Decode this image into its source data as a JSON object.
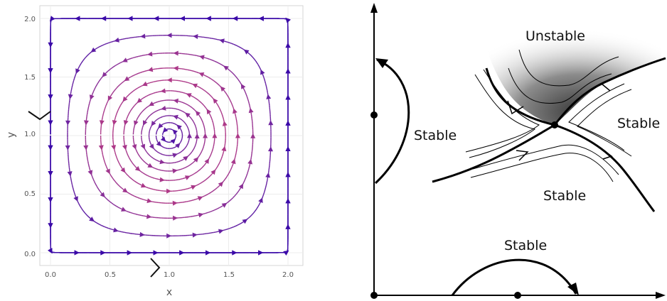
{
  "left_panel": {
    "xlabel": "x",
    "ylabel": "y",
    "xticks": [
      "0.0",
      "0.5",
      "1.0",
      "1.5",
      "2.0"
    ],
    "yticks": [
      "0.0",
      "0.5",
      "1.0",
      "1.5",
      "2.0"
    ],
    "xrange": [
      -0.1,
      2.1
    ],
    "yrange": [
      -0.05,
      2.1
    ],
    "center": [
      1.0,
      1.0
    ],
    "orbit_levels": [
      0.008,
      0.03,
      0.07,
      0.13,
      0.21,
      0.32,
      0.46,
      0.62,
      0.8,
      0.95,
      1.05,
      1.13,
      1.2
    ],
    "colormap": [
      "#3b0aa8",
      "#7a2a9e",
      "#b23a86",
      "#df5f5a",
      "#f29a35"
    ]
  },
  "right_panel": {
    "labels": {
      "unstable": "Unstable",
      "stable_left": "Stable",
      "stable_right": "Stable",
      "stable_bottom_mid": "Stable",
      "stable_bottom": "Stable"
    }
  }
}
